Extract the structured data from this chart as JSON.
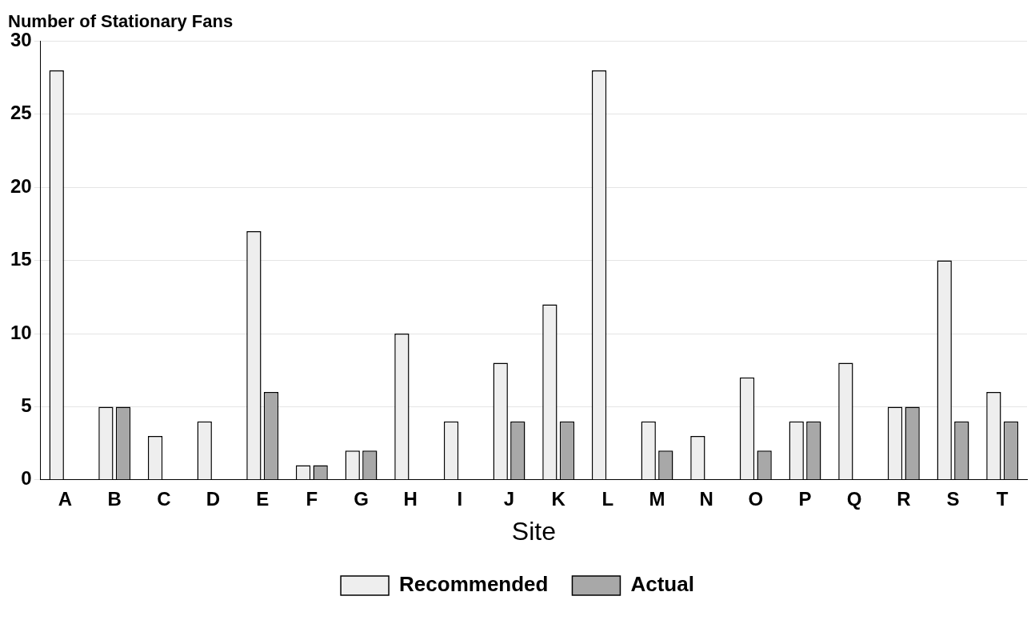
{
  "chart_data": {
    "type": "bar",
    "ylabel": "Number of Stationary Fans",
    "xlabel": "Site",
    "categories": [
      "A",
      "B",
      "C",
      "D",
      "E",
      "F",
      "G",
      "H",
      "I",
      "J",
      "K",
      "L",
      "M",
      "N",
      "O",
      "P",
      "Q",
      "R",
      "S",
      "T"
    ],
    "series": [
      {
        "name": "Recommended",
        "color": "#eeeeee",
        "values": [
          28,
          5,
          3,
          4,
          17,
          1,
          2,
          10,
          4,
          8,
          12,
          28,
          4,
          3,
          7,
          4,
          8,
          5,
          15,
          6
        ]
      },
      {
        "name": "Actual",
        "color": "#a8a8a8",
        "values": [
          0,
          5,
          0,
          0,
          6,
          1,
          2,
          0,
          0,
          4,
          4,
          0,
          2,
          0,
          2,
          4,
          0,
          5,
          4,
          4
        ]
      }
    ],
    "ylim": [
      0,
      30
    ],
    "yticks": [
      0,
      5,
      10,
      15,
      20,
      25,
      30
    ],
    "grid": "y",
    "legend": "bottom"
  }
}
